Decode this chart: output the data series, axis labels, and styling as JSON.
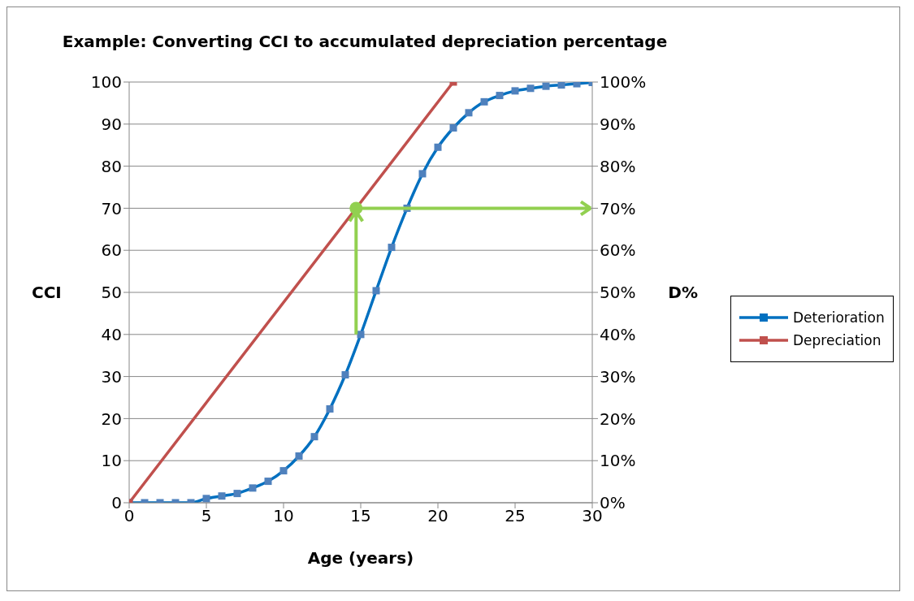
{
  "chart_data": {
    "type": "line",
    "title": "Example: Converting CCI to accumulated depreciation percentage",
    "xlabel": "Age (years)",
    "ylabel": "CCI",
    "y2label": "D%",
    "xlim": [
      0,
      30
    ],
    "xticks": [
      0,
      5,
      10,
      15,
      20,
      25,
      30
    ],
    "ylim": [
      0,
      100
    ],
    "yticks": [
      0,
      10,
      20,
      30,
      40,
      50,
      60,
      70,
      80,
      90,
      100
    ],
    "y2lim": [
      0,
      100
    ],
    "y2ticks": [
      {
        "value": 0,
        "label": "0%"
      },
      {
        "value": 10,
        "label": "10%"
      },
      {
        "value": 20,
        "label": "20%"
      },
      {
        "value": 30,
        "label": "30%"
      },
      {
        "value": 40,
        "label": "40%"
      },
      {
        "value": 50,
        "label": "50%"
      },
      {
        "value": 60,
        "label": "60%"
      },
      {
        "value": 70,
        "label": "70%"
      },
      {
        "value": 80,
        "label": "80%"
      },
      {
        "value": 90,
        "label": "90%"
      },
      {
        "value": 100,
        "label": "100%"
      }
    ],
    "grid": "y",
    "legend": "right",
    "marker": "square",
    "series": [
      {
        "name": "Deterioration",
        "color": "#0070c0",
        "x": [
          0,
          1,
          2,
          3,
          4,
          5,
          6,
          7,
          8,
          9,
          10,
          11,
          12,
          13,
          14,
          15,
          16,
          17,
          18,
          19,
          20,
          21,
          22,
          23,
          24,
          25,
          26,
          27,
          28,
          29,
          30
        ],
        "values": [
          0,
          0,
          0,
          0,
          0,
          1.0,
          1.6,
          2.2,
          3.5,
          5.1,
          7.6,
          11.1,
          15.7,
          22.3,
          30.4,
          40.0,
          50.4,
          60.7,
          70.0,
          78.2,
          84.5,
          89.1,
          92.7,
          95.3,
          96.8,
          97.9,
          98.5,
          99.0,
          99.3,
          99.6,
          99.9
        ]
      },
      {
        "name": "Depreciation",
        "color": "#c0504d",
        "x": [
          0,
          21
        ],
        "values": [
          0,
          100
        ]
      },
      {
        "type": "scatter",
        "color": "#92d050",
        "marker": "circle",
        "x": [
          14.7
        ],
        "values": [
          70
        ]
      }
    ]
  }
}
